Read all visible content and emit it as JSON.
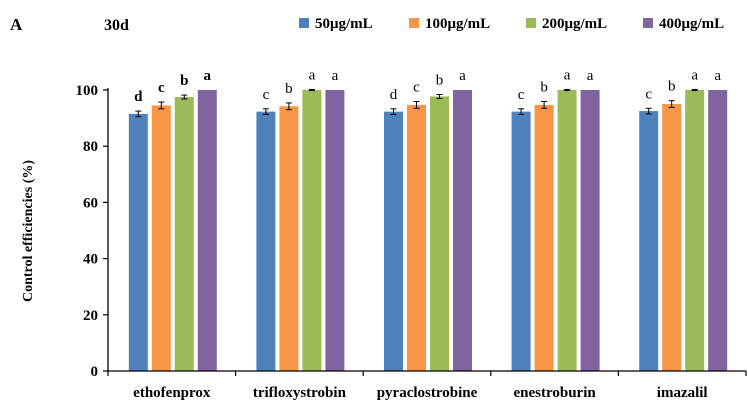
{
  "panel_letter": "A",
  "chart_data": {
    "type": "bar",
    "title": "30d",
    "xlabel": "",
    "ylabel": "Control efficiencies (%)",
    "ylim": [
      0,
      100
    ],
    "yticks": [
      0,
      20,
      40,
      60,
      80,
      100
    ],
    "grid": false,
    "legend_position": "top",
    "categories": [
      "ethofenprox",
      "trifloxystrobin",
      "pyraclostrobine",
      "enestroburin",
      "imazalil"
    ],
    "series": [
      {
        "name": "50μg/mL",
        "color": "#4F81BD",
        "values": [
          91.5,
          92.3,
          92.3,
          92.3,
          92.5
        ],
        "errors": [
          1.0,
          1.0,
          1.0,
          1.0,
          1.0
        ],
        "letters": [
          "d",
          "c",
          "d",
          "c",
          "c"
        ]
      },
      {
        "name": "100μg/mL",
        "color": "#F79646",
        "values": [
          94.5,
          94.2,
          94.7,
          94.7,
          95.0
        ],
        "errors": [
          1.2,
          1.2,
          1.2,
          1.2,
          1.2
        ],
        "letters": [
          "c",
          "b",
          "c",
          "b",
          "b"
        ]
      },
      {
        "name": "200μg/mL",
        "color": "#9BBB59",
        "values": [
          97.5,
          100,
          97.7,
          100,
          100
        ],
        "errors": [
          0.7,
          0.2,
          0.7,
          0.2,
          0.2
        ],
        "letters": [
          "b",
          "a",
          "b",
          "a",
          "a"
        ]
      },
      {
        "name": "400μg/mL",
        "color": "#8064A2",
        "values": [
          100,
          100,
          100,
          100,
          100
        ],
        "errors": [
          0,
          0,
          0,
          0,
          0
        ],
        "letters": [
          "a",
          "a",
          "a",
          "a",
          "a"
        ]
      }
    ],
    "bold_letter_categories": [
      "ethofenprox"
    ]
  }
}
